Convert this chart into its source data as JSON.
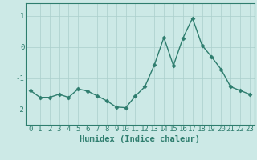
{
  "x": [
    0,
    1,
    2,
    3,
    4,
    5,
    6,
    7,
    8,
    9,
    10,
    11,
    12,
    13,
    14,
    15,
    16,
    17,
    18,
    19,
    20,
    21,
    22,
    23
  ],
  "y": [
    -1.4,
    -1.62,
    -1.62,
    -1.52,
    -1.62,
    -1.35,
    -1.42,
    -1.57,
    -1.73,
    -1.93,
    -1.95,
    -1.58,
    -1.28,
    -0.58,
    0.3,
    -0.6,
    0.28,
    0.92,
    0.05,
    -0.32,
    -0.72,
    -1.28,
    -1.4,
    -1.52
  ],
  "line_color": "#2e7d6e",
  "marker": "D",
  "marker_size": 2.5,
  "line_width": 1.0,
  "xlabel": "Humidex (Indice chaleur)",
  "xlabel_fontsize": 7.5,
  "tick_fontsize": 6.5,
  "tick_color": "#2e7d6e",
  "bg_color": "#cce9e6",
  "grid_color": "#aacfcc",
  "spine_color": "#2e7d6e",
  "ylim": [
    -2.5,
    1.4
  ],
  "yticks": [
    -2,
    -1,
    0,
    1
  ],
  "xlim": [
    -0.5,
    23.5
  ]
}
